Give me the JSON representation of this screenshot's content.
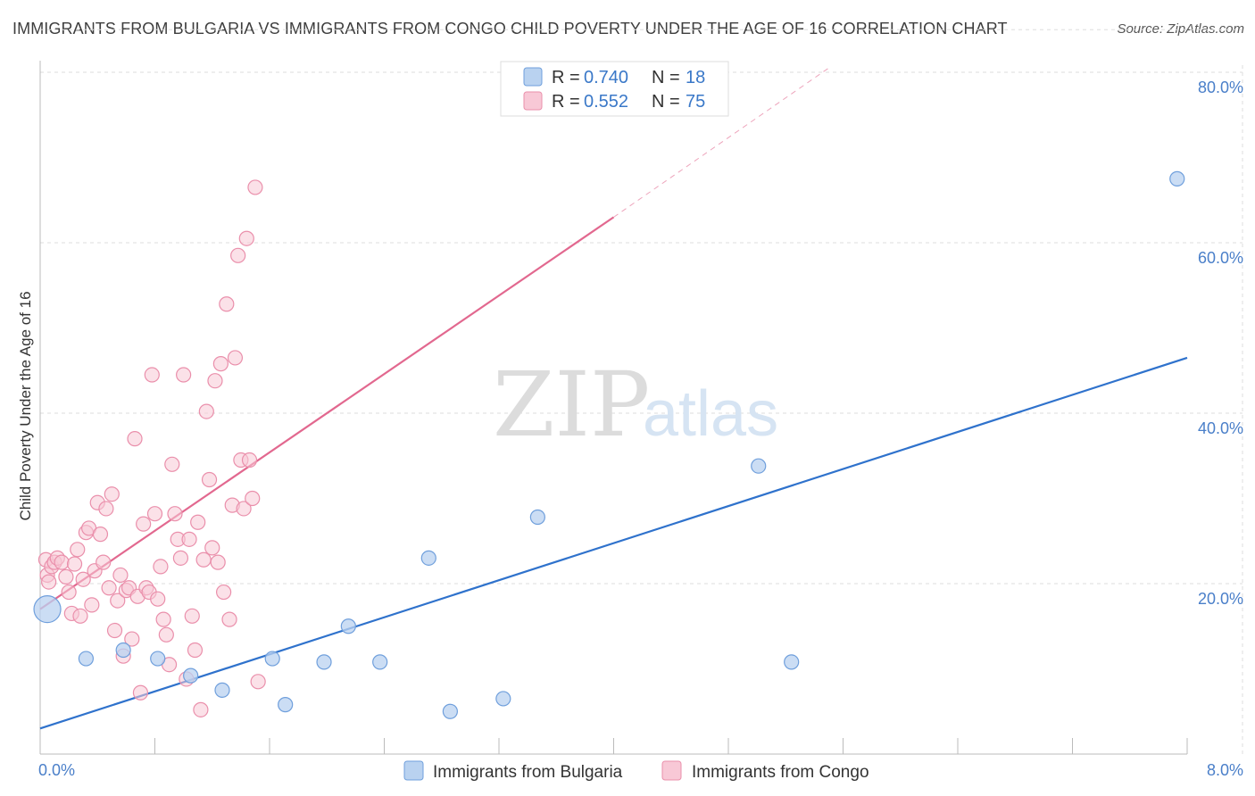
{
  "title": "IMMIGRANTS FROM BULGARIA VS IMMIGRANTS FROM CONGO CHILD POVERTY UNDER THE AGE OF 16 CORRELATION CHART",
  "source": "Source: ZipAtlas.com",
  "watermark": {
    "zip": "ZIP",
    "atlas": "atlas"
  },
  "colors": {
    "bulgaria_fill": "#b9d2f0",
    "bulgaria_stroke": "#6f9fdc",
    "bulgaria_line": "#2f72cc",
    "congo_fill": "#f8c8d6",
    "congo_stroke": "#ea8fab",
    "congo_line": "#e2688f",
    "grid": "#dddddd",
    "axis_label": "#4a7fc9"
  },
  "legend": {
    "rows": [
      {
        "r_label": "R = ",
        "r_value": "0.740",
        "n_label": "N = ",
        "n_value": "18"
      },
      {
        "r_label": "R = ",
        "r_value": "0.552",
        "n_label": "N = ",
        "n_value": "75"
      }
    ]
  },
  "chart_data": {
    "type": "scatter",
    "title": "IMMIGRANTS FROM BULGARIA VS IMMIGRANTS FROM CONGO CHILD POVERTY UNDER THE AGE OF 16 CORRELATION CHART",
    "xlabel": "",
    "ylabel": "Child Poverty Under the Age of 16",
    "xlim": [
      0,
      8
    ],
    "ylim": [
      0,
      80
    ],
    "x_tick_labels": [
      "0.0%",
      "8.0%"
    ],
    "y_ticks": [
      20,
      40,
      60,
      80
    ],
    "y_tick_labels": [
      "20.0%",
      "40.0%",
      "60.0%",
      "80.0%"
    ],
    "grid": true,
    "series": [
      {
        "name": "Immigrants from Bulgaria",
        "R": 0.74,
        "N": 18,
        "points": [
          {
            "x": 0.05,
            "y": 17.0,
            "big": true
          },
          {
            "x": 0.32,
            "y": 11.2
          },
          {
            "x": 0.58,
            "y": 12.2
          },
          {
            "x": 0.82,
            "y": 11.2
          },
          {
            "x": 1.05,
            "y": 9.2
          },
          {
            "x": 1.27,
            "y": 7.5
          },
          {
            "x": 1.62,
            "y": 11.2
          },
          {
            "x": 1.71,
            "y": 5.8
          },
          {
            "x": 1.98,
            "y": 10.8
          },
          {
            "x": 2.15,
            "y": 15.0
          },
          {
            "x": 2.37,
            "y": 10.8
          },
          {
            "x": 2.71,
            "y": 23.0
          },
          {
            "x": 2.86,
            "y": 5.0
          },
          {
            "x": 3.23,
            "y": 6.5
          },
          {
            "x": 3.47,
            "y": 27.8
          },
          {
            "x": 5.01,
            "y": 33.8
          },
          {
            "x": 5.24,
            "y": 10.8
          },
          {
            "x": 7.93,
            "y": 67.5
          }
        ],
        "trend": {
          "x0": 0.0,
          "y0": 3.0,
          "x1": 8.0,
          "y1": 46.5
        }
      },
      {
        "name": "Immigrants from Congo",
        "R": 0.552,
        "N": 75,
        "points": [
          {
            "x": 0.04,
            "y": 22.8
          },
          {
            "x": 0.05,
            "y": 21.0
          },
          {
            "x": 0.06,
            "y": 20.2
          },
          {
            "x": 0.08,
            "y": 22.0
          },
          {
            "x": 0.1,
            "y": 22.5
          },
          {
            "x": 0.12,
            "y": 23.0
          },
          {
            "x": 0.15,
            "y": 22.5
          },
          {
            "x": 0.18,
            "y": 20.8
          },
          {
            "x": 0.2,
            "y": 19.0
          },
          {
            "x": 0.22,
            "y": 16.5
          },
          {
            "x": 0.24,
            "y": 22.3
          },
          {
            "x": 0.26,
            "y": 24.0
          },
          {
            "x": 0.28,
            "y": 16.2
          },
          {
            "x": 0.3,
            "y": 20.5
          },
          {
            "x": 0.32,
            "y": 26.0
          },
          {
            "x": 0.34,
            "y": 26.5
          },
          {
            "x": 0.36,
            "y": 17.5
          },
          {
            "x": 0.38,
            "y": 21.5
          },
          {
            "x": 0.4,
            "y": 29.5
          },
          {
            "x": 0.42,
            "y": 25.8
          },
          {
            "x": 0.44,
            "y": 22.5
          },
          {
            "x": 0.46,
            "y": 28.8
          },
          {
            "x": 0.48,
            "y": 19.5
          },
          {
            "x": 0.5,
            "y": 30.5
          },
          {
            "x": 0.52,
            "y": 14.5
          },
          {
            "x": 0.54,
            "y": 18.0
          },
          {
            "x": 0.56,
            "y": 21.0
          },
          {
            "x": 0.58,
            "y": 11.5
          },
          {
            "x": 0.6,
            "y": 19.2
          },
          {
            "x": 0.62,
            "y": 19.5
          },
          {
            "x": 0.64,
            "y": 13.5
          },
          {
            "x": 0.66,
            "y": 37.0
          },
          {
            "x": 0.68,
            "y": 18.5
          },
          {
            "x": 0.7,
            "y": 7.2
          },
          {
            "x": 0.72,
            "y": 27.0
          },
          {
            "x": 0.74,
            "y": 19.5
          },
          {
            "x": 0.76,
            "y": 19.0
          },
          {
            "x": 0.78,
            "y": 44.5
          },
          {
            "x": 0.8,
            "y": 28.2
          },
          {
            "x": 0.82,
            "y": 18.2
          },
          {
            "x": 0.84,
            "y": 22.0
          },
          {
            "x": 0.86,
            "y": 15.8
          },
          {
            "x": 0.88,
            "y": 14.0
          },
          {
            "x": 0.9,
            "y": 10.5
          },
          {
            "x": 0.92,
            "y": 34.0
          },
          {
            "x": 0.94,
            "y": 28.2
          },
          {
            "x": 0.96,
            "y": 25.2
          },
          {
            "x": 0.98,
            "y": 23.0
          },
          {
            "x": 1.0,
            "y": 44.5
          },
          {
            "x": 1.02,
            "y": 8.8
          },
          {
            "x": 1.04,
            "y": 25.2
          },
          {
            "x": 1.06,
            "y": 16.2
          },
          {
            "x": 1.08,
            "y": 12.2
          },
          {
            "x": 1.1,
            "y": 27.2
          },
          {
            "x": 1.12,
            "y": 5.2
          },
          {
            "x": 1.14,
            "y": 22.8
          },
          {
            "x": 1.16,
            "y": 40.2
          },
          {
            "x": 1.18,
            "y": 32.2
          },
          {
            "x": 1.2,
            "y": 24.2
          },
          {
            "x": 1.22,
            "y": 43.8
          },
          {
            "x": 1.24,
            "y": 22.5
          },
          {
            "x": 1.26,
            "y": 45.8
          },
          {
            "x": 1.28,
            "y": 19.0
          },
          {
            "x": 1.3,
            "y": 52.8
          },
          {
            "x": 1.32,
            "y": 15.8
          },
          {
            "x": 1.34,
            "y": 29.2
          },
          {
            "x": 1.36,
            "y": 46.5
          },
          {
            "x": 1.38,
            "y": 58.5
          },
          {
            "x": 1.4,
            "y": 34.5
          },
          {
            "x": 1.42,
            "y": 28.8
          },
          {
            "x": 1.44,
            "y": 60.5
          },
          {
            "x": 1.46,
            "y": 34.5
          },
          {
            "x": 1.48,
            "y": 30.0
          },
          {
            "x": 1.5,
            "y": 66.5
          },
          {
            "x": 1.52,
            "y": 8.5
          }
        ],
        "trend": {
          "x0": 0.0,
          "y0": 17.0,
          "x1": 4.0,
          "y1": 63.0
        },
        "trend_dashed_extension": {
          "x0": 4.0,
          "y0": 63.0,
          "x1": 5.5,
          "y1": 80.5
        }
      }
    ],
    "legend_entries": [
      "Immigrants from Bulgaria",
      "Immigrants from Congo"
    ],
    "legend_position": "top-center"
  }
}
